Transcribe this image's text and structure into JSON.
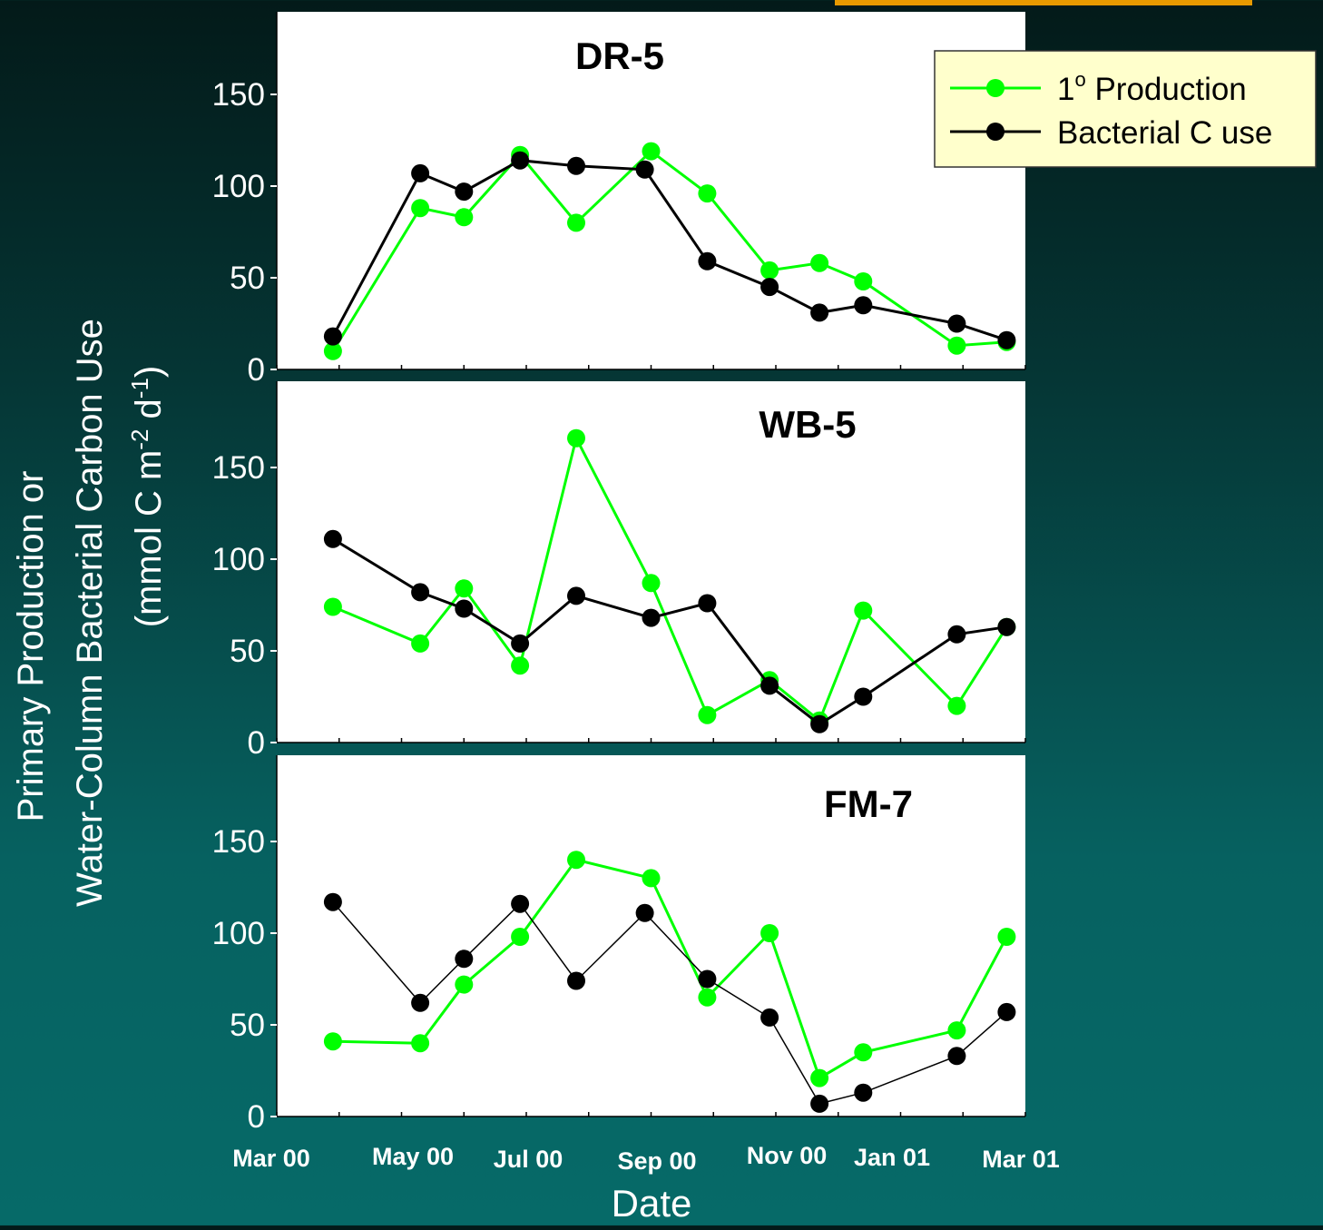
{
  "header_strip_color": "#e89a00",
  "colors": {
    "primary_production": "#00ff00",
    "bacterial_c_use": "#000000",
    "panel_bg": "#ffffff",
    "legend_bg": "#ffffcc",
    "label_text": "#ffffff"
  },
  "axis": {
    "ylabel_line1": "Primary Production or",
    "ylabel_line2": "Water-Column Bacterial Carbon Use",
    "ylabel_unit_open": "(mmol C  m",
    "ylabel_unit_sup1": "-2",
    "ylabel_unit_mid": " d",
    "ylabel_unit_sup2": "-1",
    "ylabel_unit_close": ")",
    "xlabel": "Date",
    "xtick_labels": [
      "Mar 00",
      "May 00",
      "Jul 00",
      "Sep 00",
      "Nov 00",
      "Jan 01",
      "Mar 01"
    ],
    "ytick_labels": [
      "0",
      "50",
      "100",
      "150"
    ]
  },
  "legend": {
    "placement": "top-right",
    "entry1_pre": "1",
    "entry1_sup": "o",
    "entry1_post": " Production",
    "entry2": "Bacterial C use"
  },
  "chart_data": {
    "type": "line",
    "x_unit": "month index (0 = Mar 00, 12 = Mar 01)",
    "xlim": [
      0,
      12
    ],
    "ylim": [
      0,
      200
    ],
    "grid": false,
    "panels": [
      {
        "title": "DR-5",
        "series": [
          {
            "name": "1o Production",
            "x": [
              0.9,
              2.3,
              3.0,
              3.9,
              4.8,
              6.0,
              6.9,
              7.9,
              8.7,
              9.4,
              10.9,
              11.7
            ],
            "y": [
              10,
              88,
              83,
              117,
              80,
              119,
              96,
              54,
              58,
              48,
              13,
              15
            ]
          },
          {
            "name": "Bacterial C use",
            "x": [
              0.9,
              2.3,
              3.0,
              3.9,
              4.8,
              5.9,
              6.9,
              7.9,
              8.7,
              9.4,
              10.9,
              11.7
            ],
            "y": [
              18,
              107,
              97,
              114,
              111,
              109,
              59,
              45,
              31,
              35,
              25,
              16
            ]
          }
        ]
      },
      {
        "title": "WB-5",
        "series": [
          {
            "name": "1o Production",
            "x": [
              0.9,
              2.3,
              3.0,
              3.9,
              4.8,
              6.0,
              6.9,
              7.9,
              8.7,
              9.4,
              10.9,
              11.7
            ],
            "y": [
              74,
              54,
              84,
              42,
              166,
              87,
              15,
              34,
              12,
              72,
              20,
              63
            ]
          },
          {
            "name": "Bacterial C use",
            "x": [
              0.9,
              2.3,
              3.0,
              3.9,
              4.8,
              6.0,
              6.9,
              7.9,
              8.7,
              9.4,
              10.9,
              11.7
            ],
            "y": [
              111,
              82,
              73,
              54,
              80,
              68,
              76,
              31,
              10,
              25,
              59,
              63
            ]
          }
        ]
      },
      {
        "title": "FM-7",
        "series": [
          {
            "name": "1o Production",
            "x": [
              0.9,
              2.3,
              3.0,
              3.9,
              4.8,
              6.0,
              6.9,
              7.9,
              8.7,
              9.4,
              10.9,
              11.7
            ],
            "y": [
              41,
              40,
              72,
              98,
              140,
              130,
              65,
              100,
              21,
              35,
              47,
              98
            ]
          },
          {
            "name": "Bacterial C use",
            "x": [
              0.9,
              2.3,
              3.0,
              3.9,
              4.8,
              5.9,
              6.9,
              7.9,
              8.7,
              9.4,
              10.9,
              11.7
            ],
            "y": [
              117,
              62,
              86,
              116,
              74,
              111,
              75,
              54,
              7,
              13,
              33,
              57
            ]
          }
        ]
      }
    ]
  }
}
